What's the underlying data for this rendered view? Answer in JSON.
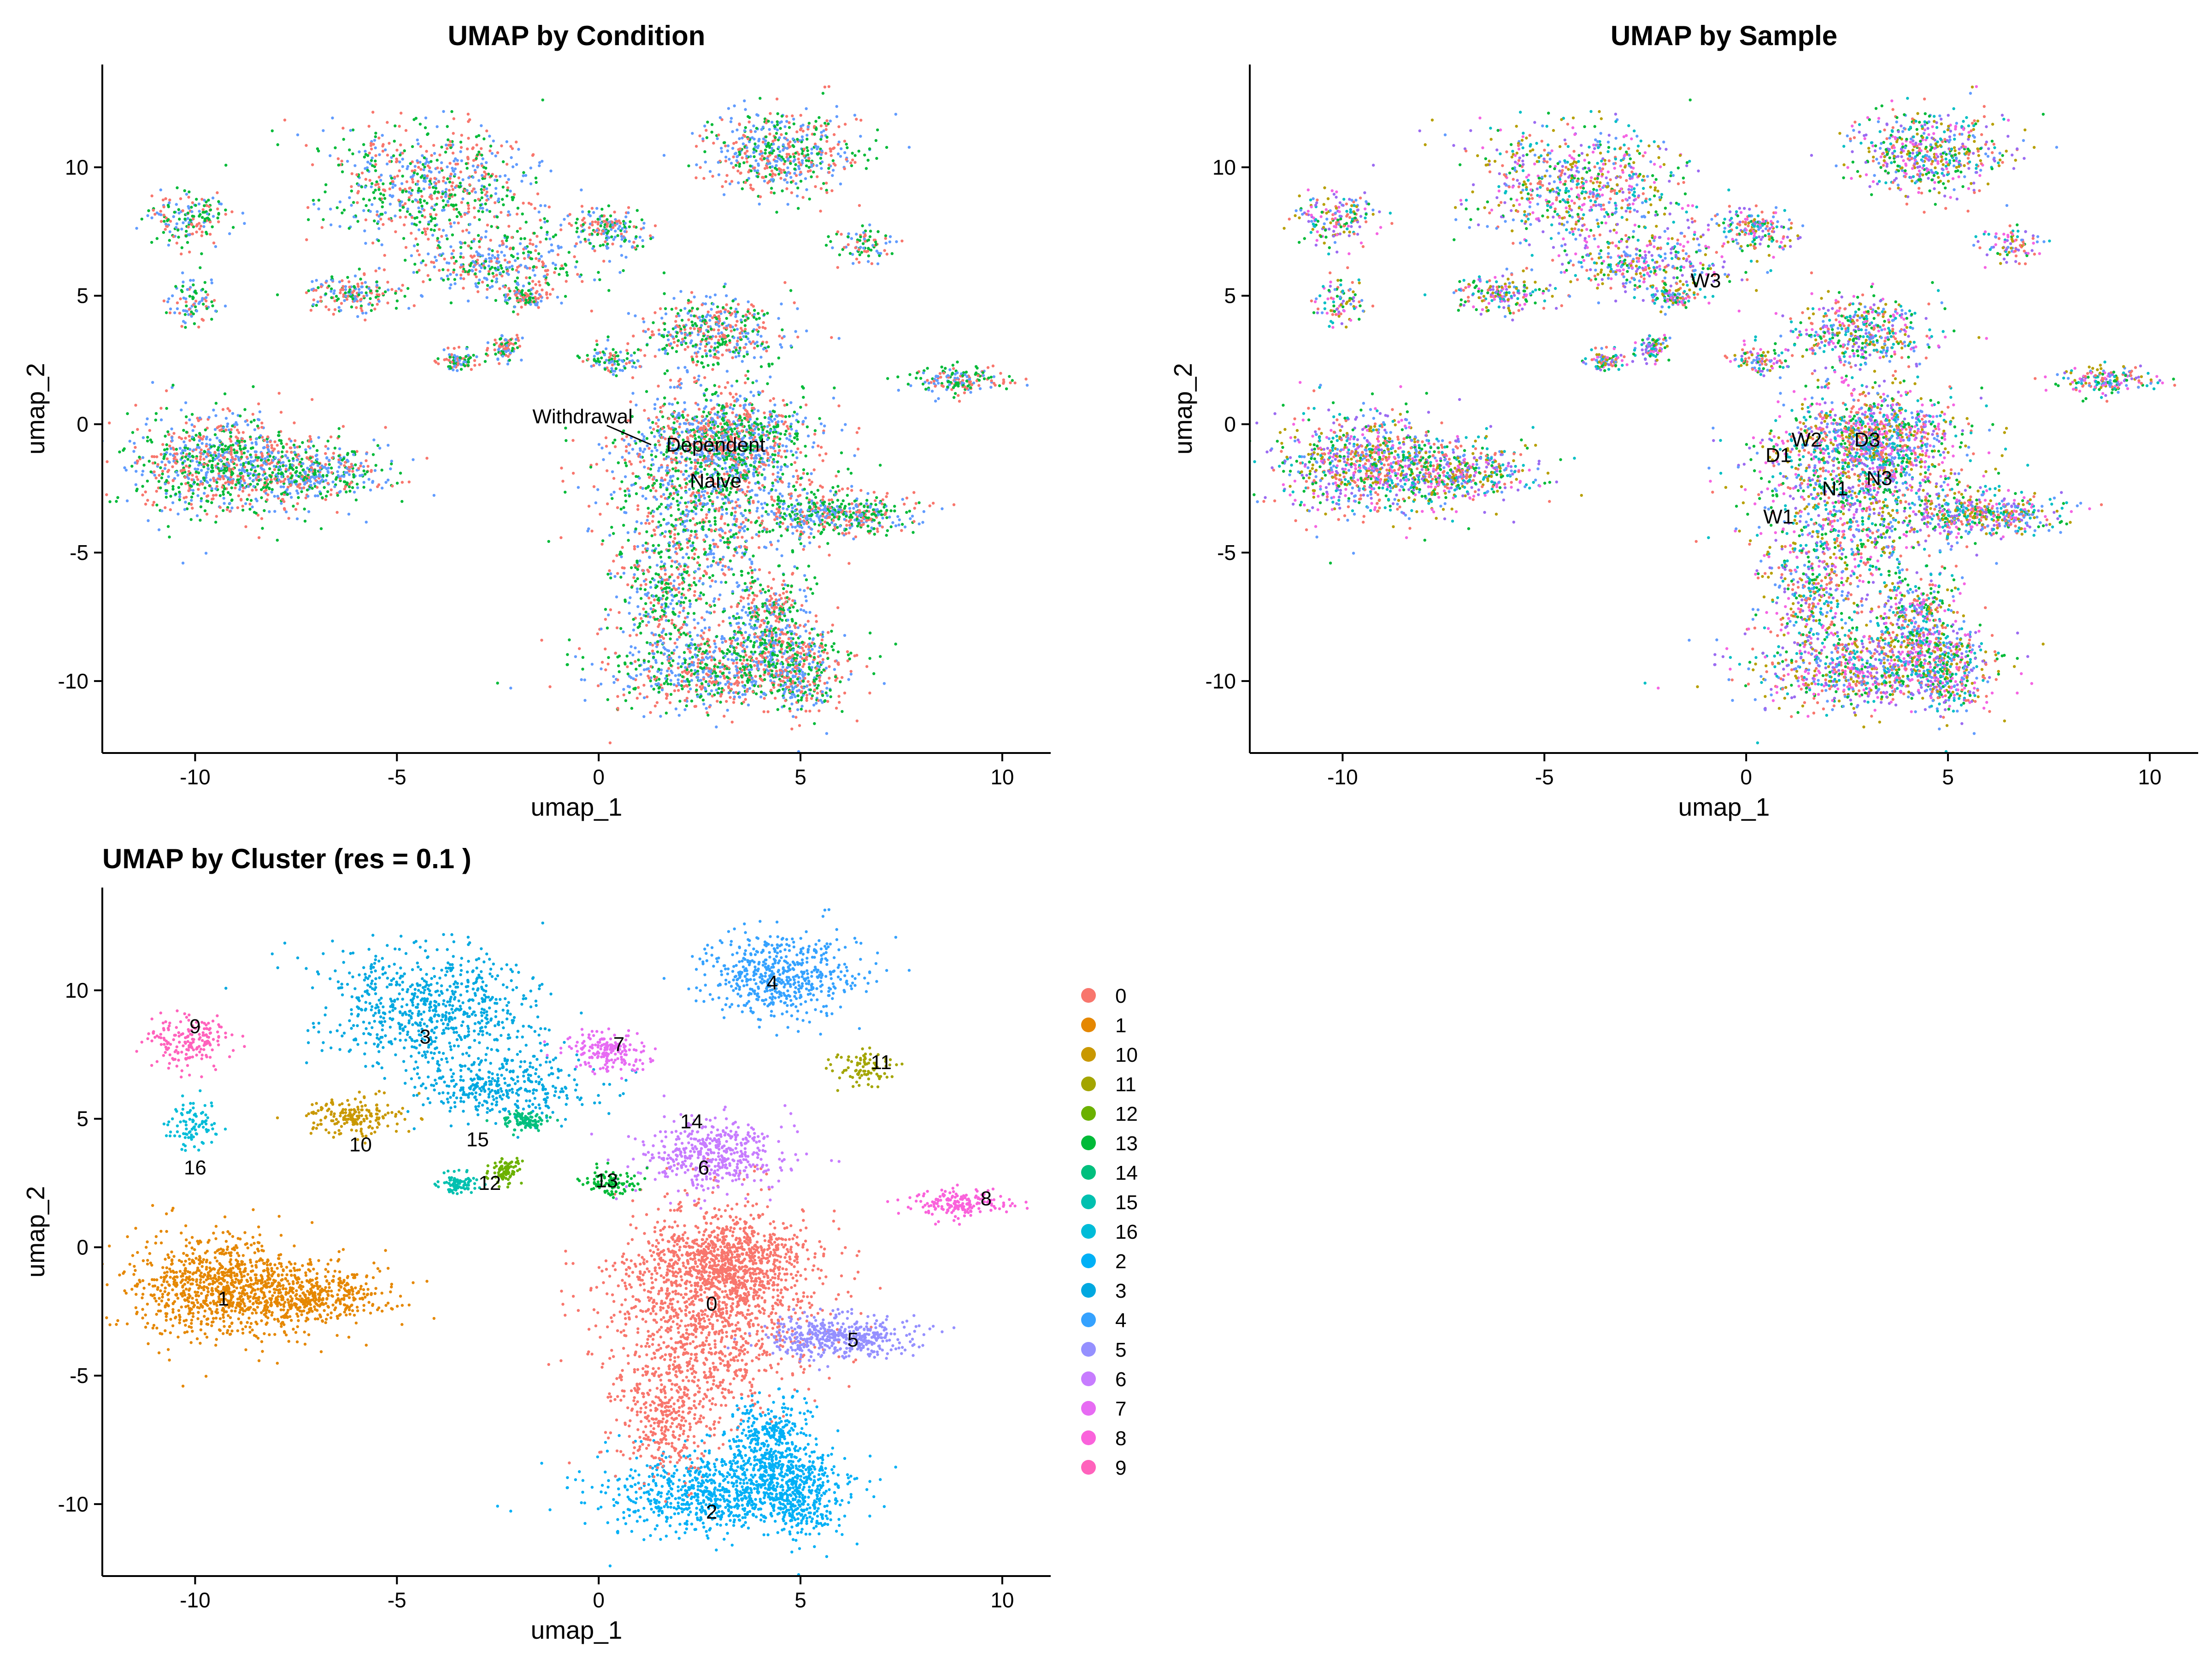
{
  "chart_data": [
    {
      "type": "scatter",
      "title": "UMAP by Condition",
      "xlabel": "umap_1",
      "ylabel": "umap_2",
      "xlim": [
        -12.3,
        11.2
      ],
      "ylim": [
        -12.8,
        14.0
      ],
      "xticks": [
        -10,
        -5,
        0,
        5,
        10
      ],
      "yticks": [
        -10,
        -5,
        0,
        5,
        10
      ],
      "grid": false,
      "labels": [
        {
          "text": "Withdrawal",
          "x": -0.4,
          "y": 0.3
        },
        {
          "text": "Dependent",
          "x": 2.9,
          "y": -0.8
        },
        {
          "text": "Naive",
          "x": 2.9,
          "y": -2.2
        }
      ],
      "colors": {
        "Dependent": "#f8766d",
        "Naive": "#00ba38",
        "Withdrawal": "#619cff"
      }
    },
    {
      "type": "scatter",
      "title": "UMAP by Sample",
      "xlabel": "umap_1",
      "ylabel": "umap_2",
      "xlim": [
        -12.3,
        11.2
      ],
      "ylim": [
        -12.8,
        14.0
      ],
      "xticks": [
        -10,
        -5,
        0,
        5,
        10
      ],
      "yticks": [
        -10,
        -5,
        0,
        5,
        10
      ],
      "grid": false,
      "labels": [
        {
          "text": "W3",
          "x": -1.0,
          "y": 5.6
        },
        {
          "text": "D1",
          "x": 0.8,
          "y": -1.2
        },
        {
          "text": "W2",
          "x": 1.5,
          "y": -0.6
        },
        {
          "text": "D3",
          "x": 3.0,
          "y": -0.6
        },
        {
          "text": "N1",
          "x": 2.2,
          "y": -2.5
        },
        {
          "text": "N3",
          "x": 3.3,
          "y": -2.1
        },
        {
          "text": "W1",
          "x": 0.8,
          "y": -3.6
        }
      ],
      "colors": {
        "D1": "#f8766d",
        "D3": "#b79f00",
        "N1": "#00ba38",
        "N3": "#00bfc4",
        "W1": "#619cff",
        "W2": "#9b6bf2",
        "W3": "#f564e3"
      }
    },
    {
      "type": "scatter",
      "title": "UMAP by Cluster (res = 0.1 )",
      "xlabel": "umap_1",
      "ylabel": "umap_2",
      "xlim": [
        -12.3,
        11.2
      ],
      "ylim": [
        -12.8,
        14.0
      ],
      "xticks": [
        -10,
        -5,
        0,
        5,
        10
      ],
      "yticks": [
        -10,
        -5,
        0,
        5,
        10
      ],
      "grid": false,
      "legend_position": "right",
      "legend": [
        {
          "name": "0",
          "color": "#f8766d"
        },
        {
          "name": "1",
          "color": "#e58700"
        },
        {
          "name": "10",
          "color": "#c99800"
        },
        {
          "name": "11",
          "color": "#a3a500"
        },
        {
          "name": "12",
          "color": "#6bb100"
        },
        {
          "name": "13",
          "color": "#00ba38"
        },
        {
          "name": "14",
          "color": "#00bf7d"
        },
        {
          "name": "15",
          "color": "#00c0af"
        },
        {
          "name": "16",
          "color": "#00bcd8"
        },
        {
          "name": "2",
          "color": "#00b0f6"
        },
        {
          "name": "3",
          "color": "#00a8e0"
        },
        {
          "name": "4",
          "color": "#35a2ff"
        },
        {
          "name": "5",
          "color": "#9590ff"
        },
        {
          "name": "6",
          "color": "#c77cff"
        },
        {
          "name": "7",
          "color": "#e76bf3"
        },
        {
          "name": "8",
          "color": "#fa62db"
        },
        {
          "name": "9",
          "color": "#ff62bc"
        }
      ],
      "labels": [
        {
          "text": "0",
          "x": 2.8,
          "y": -2.2
        },
        {
          "text": "1",
          "x": -9.3,
          "y": -2.0
        },
        {
          "text": "2",
          "x": 2.8,
          "y": -10.3
        },
        {
          "text": "3",
          "x": -4.3,
          "y": 8.2
        },
        {
          "text": "4",
          "x": 4.3,
          "y": 10.3
        },
        {
          "text": "5",
          "x": 6.3,
          "y": -3.6
        },
        {
          "text": "6",
          "x": 2.6,
          "y": 3.1
        },
        {
          "text": "7",
          "x": 0.5,
          "y": 7.9
        },
        {
          "text": "8",
          "x": 9.6,
          "y": 1.9
        },
        {
          "text": "9",
          "x": -10.0,
          "y": 8.6
        },
        {
          "text": "10",
          "x": -5.9,
          "y": 4.0
        },
        {
          "text": "11",
          "x": 7.0,
          "y": 7.2
        },
        {
          "text": "12",
          "x": -2.7,
          "y": 2.5
        },
        {
          "text": "13",
          "x": 0.2,
          "y": 2.6
        },
        {
          "text": "14",
          "x": 2.3,
          "y": 4.9
        },
        {
          "text": "15",
          "x": -3.0,
          "y": 4.2
        },
        {
          "text": "16",
          "x": -10.0,
          "y": 3.1
        }
      ]
    }
  ]
}
